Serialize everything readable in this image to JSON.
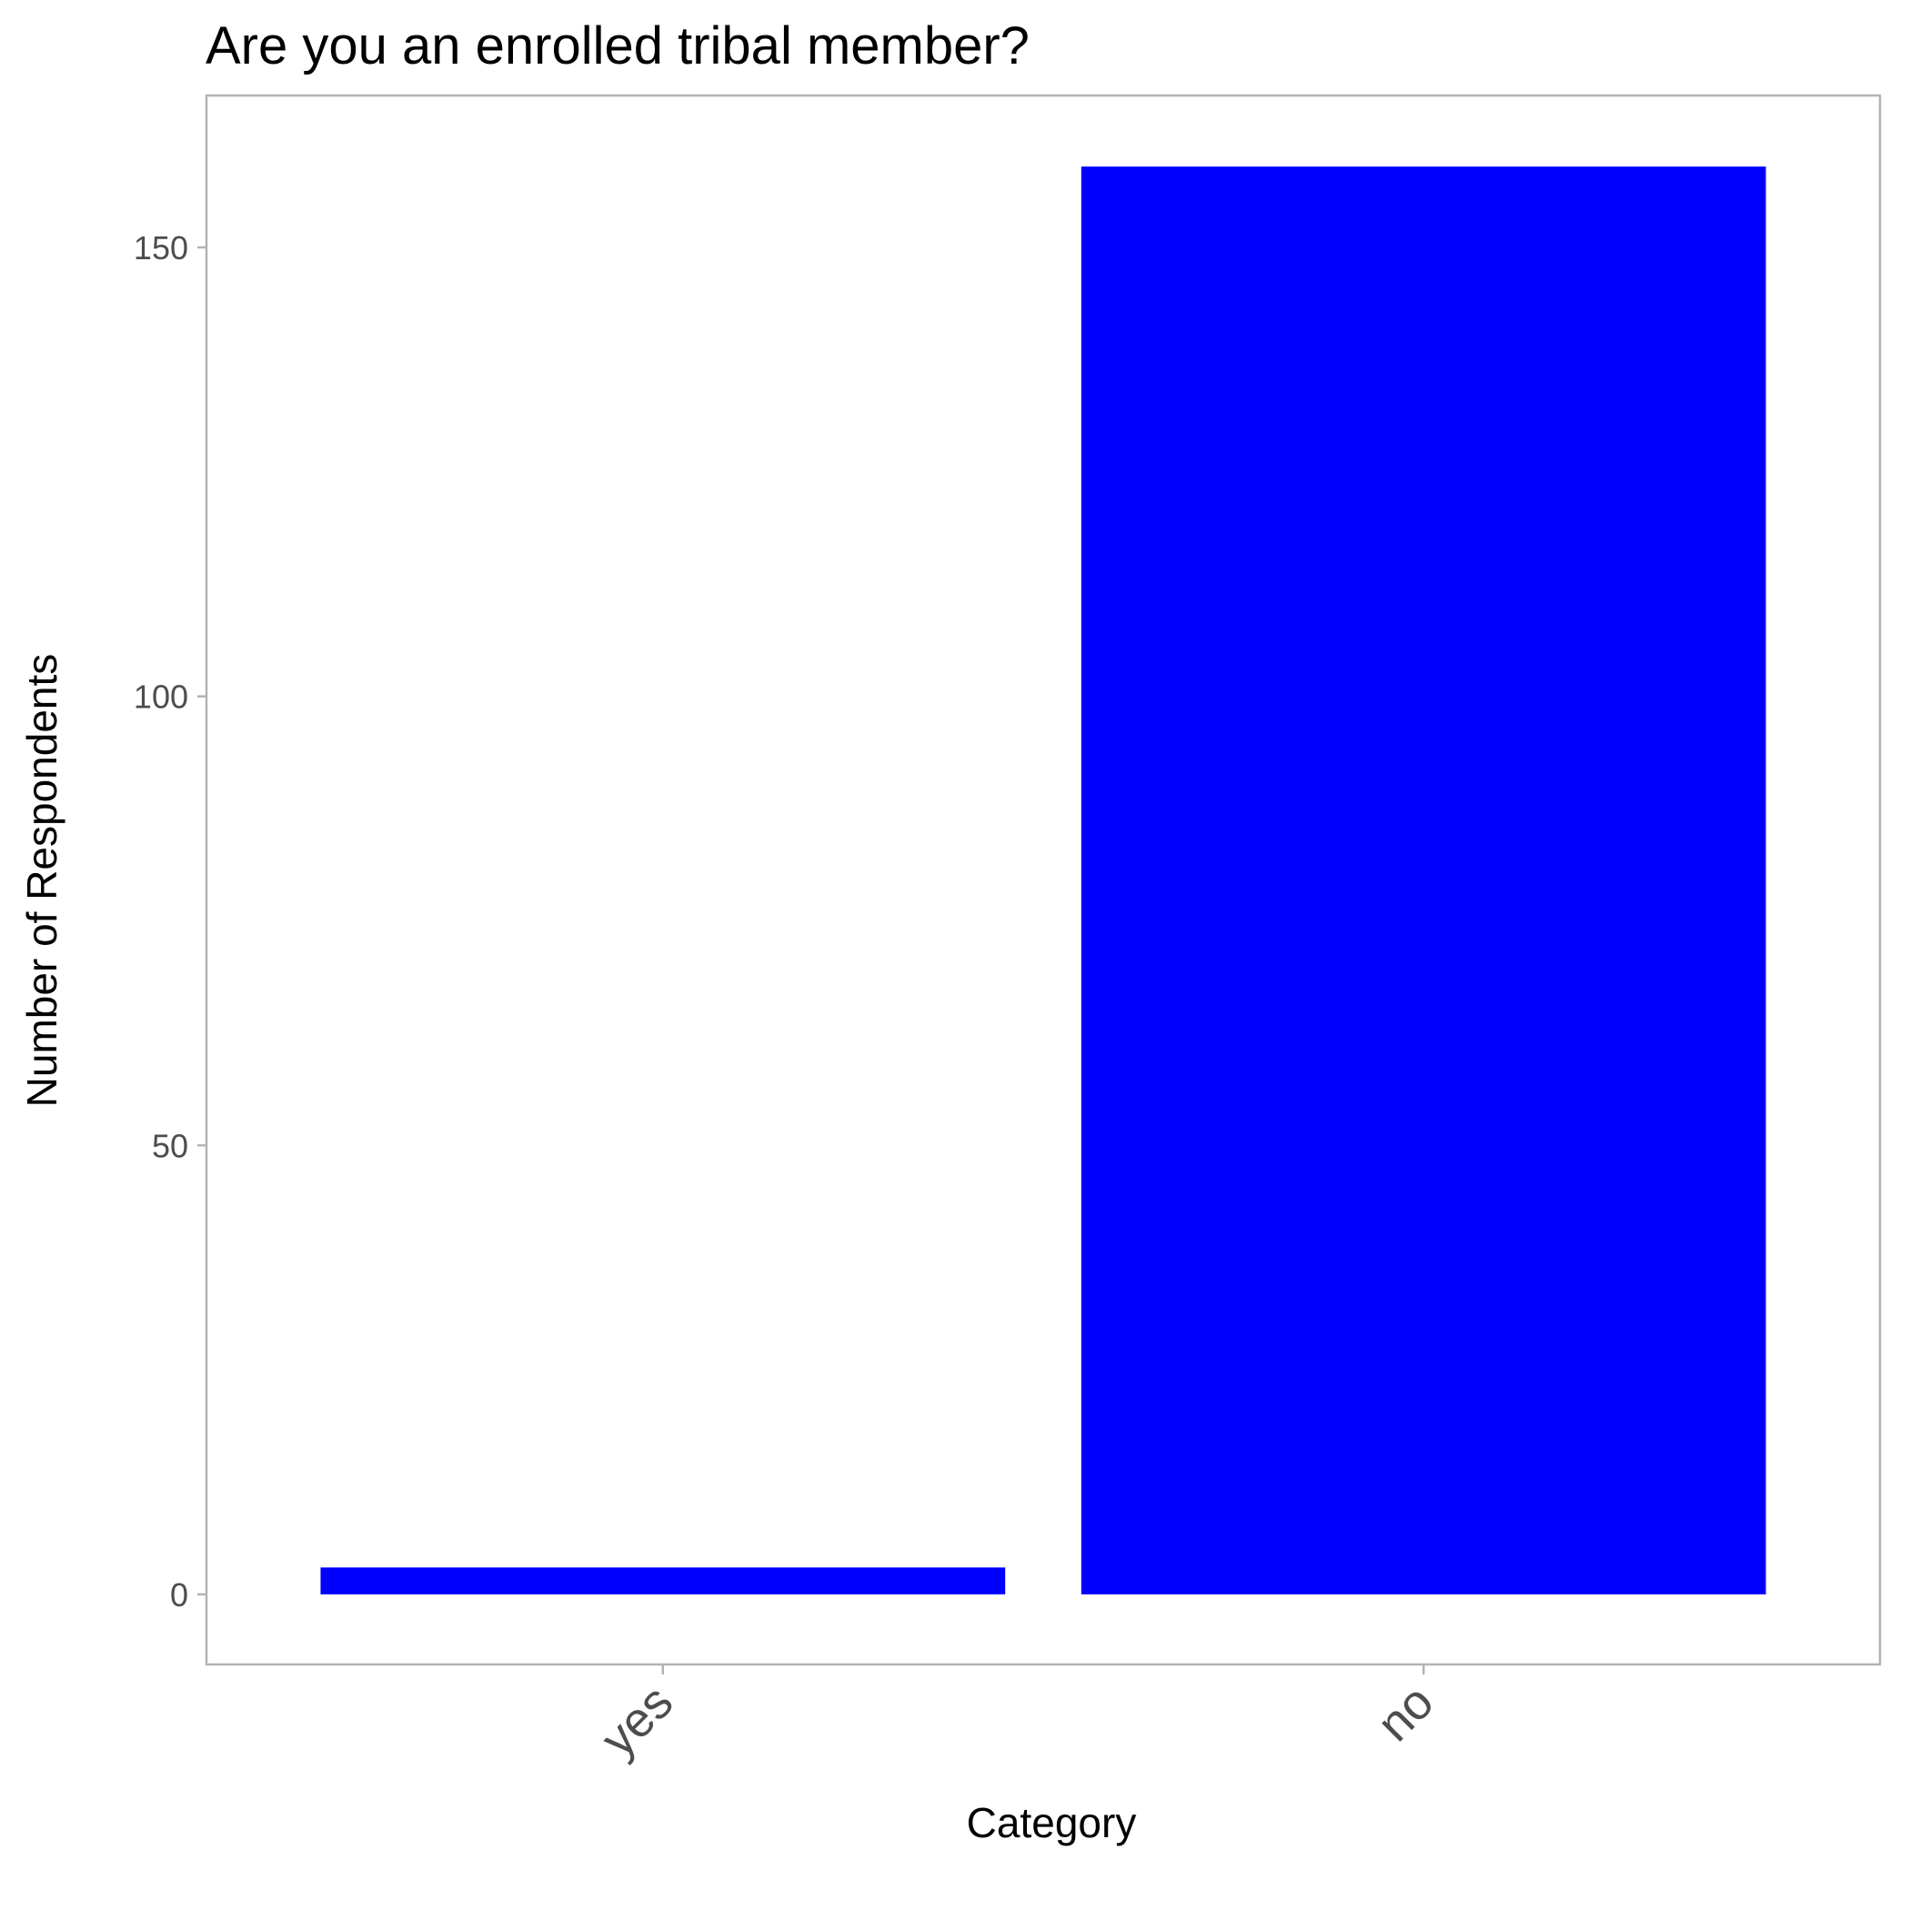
{
  "chart_data": {
    "type": "bar",
    "title": "Are you an enrolled tribal member?",
    "xlabel": "Category",
    "ylabel": "Number of Respondents",
    "categories": [
      "yes",
      "no"
    ],
    "values": [
      3,
      159
    ],
    "ylim": [
      -8,
      167
    ],
    "yticks": [
      0,
      50,
      100,
      150
    ],
    "bar_color": "#0000ff",
    "panel_border_color": "#b3b3b3",
    "grid": false,
    "x_tick_label_rotation_deg": 45
  }
}
